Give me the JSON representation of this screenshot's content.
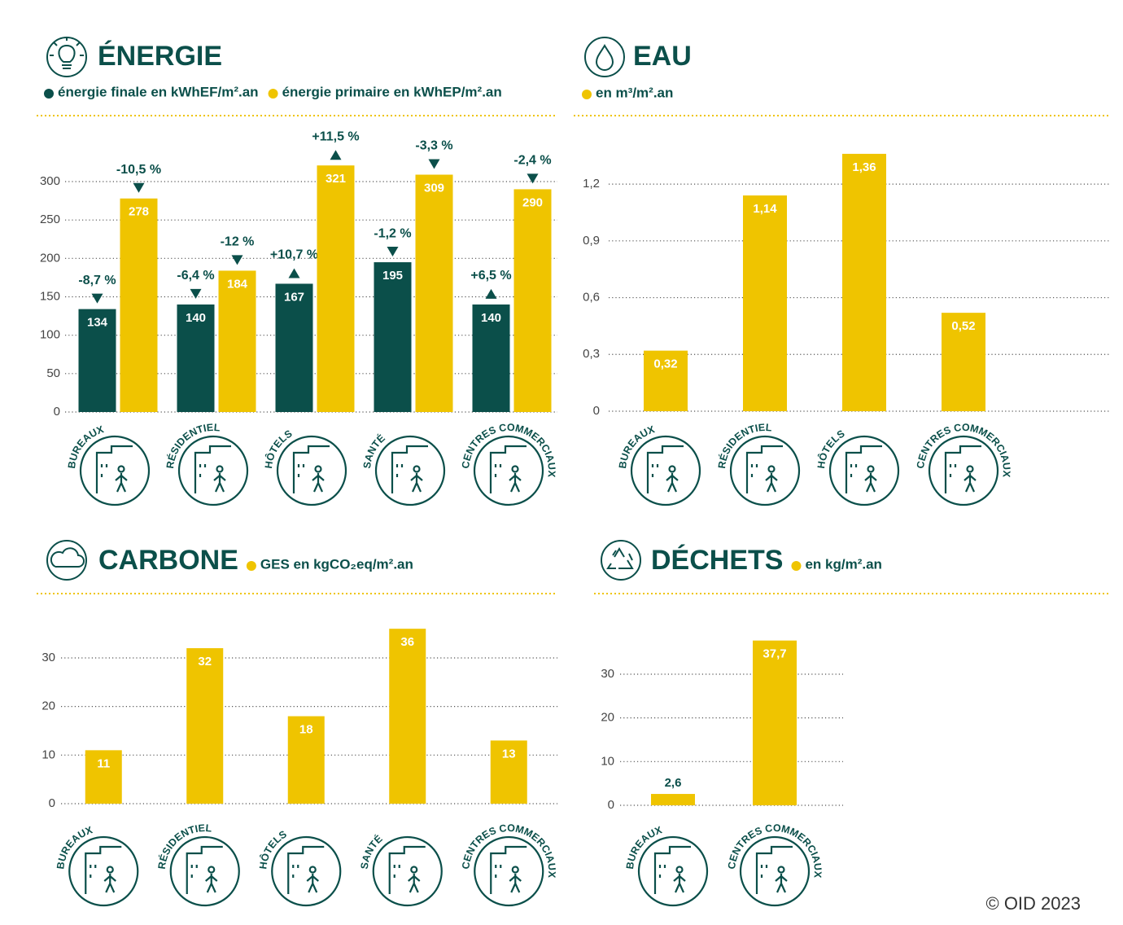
{
  "chart_data": [
    {
      "type": "bar",
      "title": "ÉNERGIE",
      "categories": [
        "BUREAUX",
        "RÉSIDENTIEL",
        "HÔTELS",
        "SANTÉ",
        "CENTRES COMMERCIAUX"
      ],
      "series": [
        {
          "name": "énergie finale en kWhEF/m².an",
          "color": "#0b4f4a",
          "values": [
            134,
            140,
            167,
            195,
            140
          ],
          "changes": [
            "-8,7 %",
            "-6,4 %",
            "+10,7 %",
            "-1,2 %",
            "+6,5 %"
          ]
        },
        {
          "name": "énergie primaire en kWhEP/m².an",
          "color": "#efc400",
          "values": [
            278,
            184,
            321,
            309,
            290
          ],
          "changes": [
            "-10,5 %",
            "-12 %",
            "+11,5 %",
            "-3,3 %",
            "-2,4 %"
          ]
        }
      ],
      "ylim": [
        0,
        330
      ],
      "yticks": [
        0,
        50,
        100,
        150,
        200,
        250,
        300
      ],
      "grid": true
    },
    {
      "type": "bar",
      "title": "EAU",
      "categories": [
        "BUREAUX",
        "RÉSIDENTIEL",
        "HÔTELS",
        "CENTRES COMMERCIAUX"
      ],
      "series": [
        {
          "name": "en m³/m².an",
          "color": "#efc400",
          "values": [
            0.32,
            1.14,
            1.36,
            0.52
          ],
          "value_labels": [
            "0,32",
            "1,14",
            "1,36",
            "0,52"
          ]
        }
      ],
      "ylim": [
        0,
        1.45
      ],
      "yticks": [
        0,
        {
          "value": 0.3,
          "label": "0,3"
        },
        {
          "value": 0.6,
          "label": "0,6"
        },
        {
          "value": 0.9,
          "label": "0,9"
        },
        {
          "value": 1.2,
          "label": "1,2"
        }
      ],
      "grid": true
    },
    {
      "type": "bar",
      "title": "CARBONE",
      "categories": [
        "BUREAUX",
        "RÉSIDENTIEL",
        "HÔTELS",
        "SANTÉ",
        "CENTRES COMMERCIAUX"
      ],
      "series": [
        {
          "name": "GES en kgCO₂eq/m².an",
          "color": "#efc400",
          "values": [
            11,
            32,
            18,
            36,
            13
          ]
        }
      ],
      "ylim": [
        0,
        40
      ],
      "yticks": [
        0,
        10,
        20,
        30
      ],
      "grid": true
    },
    {
      "type": "bar",
      "title": "DÉCHETS",
      "categories": [
        "BUREAUX",
        "CENTRES COMMERCIAUX"
      ],
      "series": [
        {
          "name": "en kg/m².an",
          "color": "#efc400",
          "values": [
            2.6,
            37.7
          ],
          "value_labels": [
            "2,6",
            "37,7"
          ]
        }
      ],
      "ylim": [
        0,
        40
      ],
      "yticks": [
        0,
        10,
        20,
        30
      ],
      "grid": true
    }
  ],
  "footer": "© OID 2023"
}
